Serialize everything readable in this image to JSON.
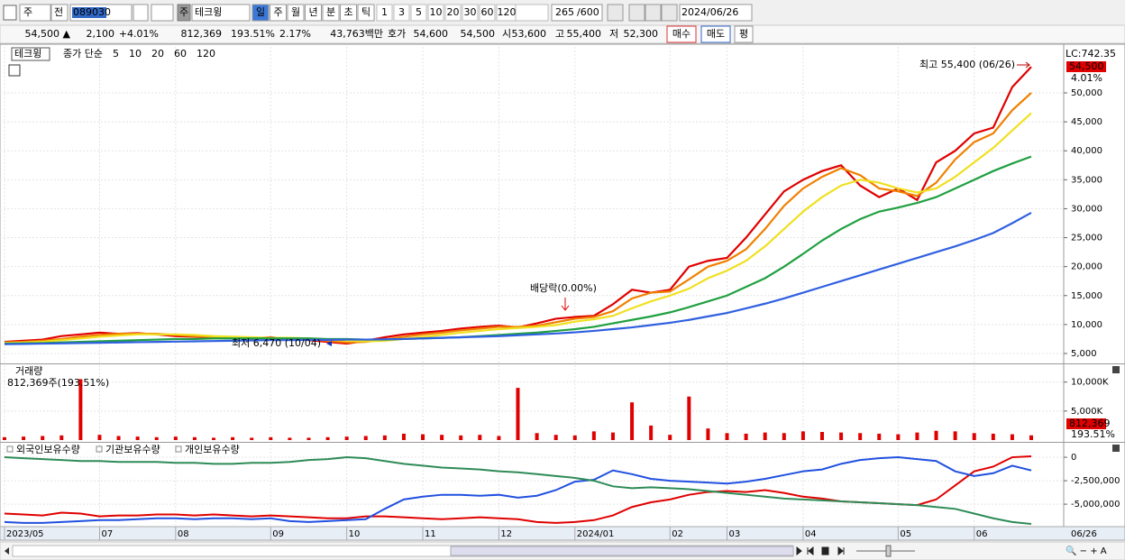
{
  "toolbar": {
    "market": "주",
    "prev": "전",
    "code": "089030",
    "name_tag": "주",
    "name": "테크윙",
    "periods": [
      "일",
      "주",
      "월",
      "년",
      "분",
      "초",
      "틱"
    ],
    "intervals": [
      "1",
      "3",
      "5",
      "10",
      "20",
      "30",
      "60",
      "120"
    ],
    "count": "265",
    "max": "/600",
    "date": "2024/06/26"
  },
  "quote": {
    "price": "54,500 ▲",
    "change": "2,100",
    "rate": "+4.01%",
    "volume": "812,369",
    "volume_ratio": "193.51%",
    "turnover": "2.17%",
    "amount": "43,763백만",
    "bid_label": "호가",
    "ask": "54,600",
    "bid": "54,500",
    "open_label": "시",
    "open": "53,600",
    "high_label": "고",
    "high": "55,400",
    "low_label": "저",
    "low": "52,300",
    "buy": "매수",
    "sell": "매도",
    "avg": "평"
  },
  "chart_data": [
    {
      "type": "line",
      "title": "테크윙",
      "legend_prefix": "종가 단순",
      "grid": true,
      "ylim": [
        3440,
        57940
      ],
      "yticks": [
        {
          "value": 5000,
          "label": "5,000"
        },
        {
          "value": 10000,
          "label": "10,000"
        },
        {
          "value": 15000,
          "label": "15,000"
        },
        {
          "value": 20000,
          "label": "20,000"
        },
        {
          "value": 25000,
          "label": "25,000"
        },
        {
          "value": 30000,
          "label": "30,000"
        },
        {
          "value": 35000,
          "label": "35,000"
        },
        {
          "value": 40000,
          "label": "40,000"
        },
        {
          "value": 45000,
          "label": "45,000"
        },
        {
          "value": 50000,
          "label": "50,000"
        }
      ],
      "annotations": {
        "high": "최고 55,400 (06/26)",
        "low": "최저 6,470 (10/04)",
        "dividend": "배당락(0.00%)"
      },
      "right_labels": {
        "lc": "LC:742.35",
        "price": "54,500",
        "rate": "4.01%"
      },
      "series": [
        {
          "name": "5",
          "color": "#e00000",
          "values": [
            7000,
            7200,
            7400,
            8000,
            8300,
            8600,
            8400,
            8500,
            8300,
            8000,
            7900,
            7800,
            7700,
            7600,
            7800,
            7500,
            7300,
            7000,
            6700,
            7200,
            7800,
            8300,
            8600,
            8900,
            9300,
            9600,
            9800,
            9500,
            10200,
            11000,
            11300,
            11500,
            13500,
            16000,
            15500,
            16000,
            20000,
            21000,
            21500,
            25000,
            29000,
            33000,
            35000,
            36500,
            37500,
            34000,
            32000,
            33500,
            31500,
            38000,
            40000,
            43000,
            44000,
            51000,
            54500
          ]
        },
        {
          "name": "10",
          "color": "#f08000",
          "values": [
            6900,
            7000,
            7200,
            7500,
            7900,
            8200,
            8400,
            8400,
            8400,
            8200,
            8000,
            7900,
            7800,
            7700,
            7700,
            7600,
            7500,
            7200,
            6900,
            7000,
            7400,
            7900,
            8300,
            8600,
            9000,
            9300,
            9600,
            9600,
            9800,
            10400,
            11000,
            11300,
            12300,
            14500,
            15500,
            15700,
            17800,
            20000,
            21000,
            23000,
            26500,
            30500,
            33500,
            35500,
            37000,
            35800,
            33500,
            33000,
            32200,
            34500,
            38500,
            41500,
            43000,
            47000,
            50000
          ]
        },
        {
          "name": "20",
          "color": "#f0e020",
          "values": [
            6800,
            6900,
            7000,
            7300,
            7600,
            7900,
            8100,
            8300,
            8300,
            8300,
            8200,
            8000,
            7900,
            7800,
            7700,
            7700,
            7600,
            7400,
            7200,
            7100,
            7200,
            7500,
            7900,
            8200,
            8600,
            8900,
            9200,
            9400,
            9600,
            9900,
            10500,
            10900,
            11500,
            12800,
            14000,
            15000,
            16200,
            18000,
            19300,
            21000,
            23500,
            26500,
            29500,
            32000,
            34000,
            35000,
            34500,
            33500,
            32800,
            33500,
            35500,
            38000,
            40500,
            43500,
            46500
          ]
        },
        {
          "name": "60",
          "color": "#20a040",
          "values": [
            6700,
            6750,
            6800,
            6900,
            7000,
            7100,
            7200,
            7300,
            7400,
            7500,
            7500,
            7600,
            7600,
            7600,
            7600,
            7600,
            7600,
            7500,
            7500,
            7400,
            7400,
            7500,
            7600,
            7700,
            7800,
            8000,
            8200,
            8400,
            8600,
            8900,
            9200,
            9600,
            10200,
            10800,
            11400,
            12100,
            13000,
            14000,
            15000,
            16500,
            18000,
            20000,
            22200,
            24500,
            26500,
            28200,
            29500,
            30200,
            31000,
            32000,
            33500,
            35000,
            36500,
            37800,
            39000
          ]
        },
        {
          "name": "120",
          "color": "#3060e0",
          "values": [
            6600,
            6650,
            6700,
            6750,
            6800,
            6850,
            6900,
            6950,
            7000,
            7050,
            7100,
            7150,
            7200,
            7250,
            7300,
            7300,
            7350,
            7350,
            7400,
            7400,
            7450,
            7500,
            7600,
            7700,
            7800,
            7900,
            8000,
            8150,
            8300,
            8450,
            8650,
            8900,
            9200,
            9500,
            9900,
            10300,
            10800,
            11400,
            12000,
            12800,
            13600,
            14500,
            15500,
            16500,
            17500,
            18500,
            19500,
            20500,
            21500,
            22500,
            23500,
            24600,
            25800,
            27500,
            29300
          ]
        }
      ]
    },
    {
      "type": "bar",
      "title": "거래량",
      "subtitle": "812,369주(193.51%)",
      "color": "#e00000",
      "ylim": [
        0,
        12900
      ],
      "yticks": [
        {
          "value": 5000,
          "label": "5,000K"
        },
        {
          "value": 10000,
          "label": "10,000K"
        }
      ],
      "right_labels": {
        "volume": "812,369",
        "ratio": "193.51%"
      },
      "values": [
        500,
        600,
        700,
        800,
        10500,
        900,
        700,
        600,
        500,
        600,
        500,
        400,
        500,
        400,
        500,
        400,
        400,
        500,
        600,
        700,
        800,
        1100,
        1000,
        900,
        800,
        900,
        700,
        9000,
        1200,
        900,
        800,
        1500,
        1300,
        6500,
        2500,
        900,
        7500,
        2000,
        1200,
        1100,
        1300,
        1200,
        1500,
        1400,
        1300,
        1200,
        1100,
        1000,
        1300,
        1600,
        1500,
        1200,
        1100,
        1000,
        812
      ]
    },
    {
      "type": "line",
      "ylim": [
        -7200000,
        1350000
      ],
      "yticks": [
        0,
        {
          "value": -2500000,
          "label": "-2,500,000"
        },
        {
          "value": -5000000,
          "label": "-5,000,000"
        }
      ],
      "categories": [
        "2023/05",
        null,
        null,
        null,
        null,
        "07",
        null,
        null,
        null,
        "08",
        null,
        null,
        null,
        null,
        "09",
        null,
        null,
        null,
        "10",
        null,
        null,
        null,
        "11",
        null,
        null,
        null,
        "12",
        null,
        null,
        null,
        "2024/01",
        null,
        null,
        null,
        null,
        "02",
        null,
        null,
        "03",
        null,
        null,
        null,
        "04",
        null,
        null,
        null,
        null,
        "05",
        null,
        null,
        null,
        "06",
        null,
        null,
        null
      ],
      "end_label": "06/26",
      "series": [
        {
          "name": "외국인보유수량",
          "color": "#e00000",
          "values": [
            -6000000,
            -6100000,
            -6200000,
            -5900000,
            -6000000,
            -6300000,
            -6200000,
            -6200000,
            -6100000,
            -6100000,
            -6200000,
            -6100000,
            -6200000,
            -6300000,
            -6200000,
            -6300000,
            -6400000,
            -6500000,
            -6500000,
            -6300000,
            -6300000,
            -6400000,
            -6500000,
            -6600000,
            -6500000,
            -6400000,
            -6500000,
            -6600000,
            -6900000,
            -7000000,
            -6900000,
            -6700000,
            -6200000,
            -5300000,
            -4800000,
            -4500000,
            -4000000,
            -3700000,
            -3600000,
            -3700000,
            -3500000,
            -3800000,
            -4200000,
            -4400000,
            -4700000,
            -4800000,
            -4900000,
            -5000000,
            -5100000,
            -4500000,
            -3000000,
            -1500000,
            -1000000,
            0,
            100000
          ]
        },
        {
          "name": "기관보유수량",
          "color": "#2050e0",
          "values": [
            -6900000,
            -7000000,
            -7000000,
            -6900000,
            -6800000,
            -6700000,
            -6700000,
            -6600000,
            -6500000,
            -6500000,
            -6600000,
            -6500000,
            -6500000,
            -6600000,
            -6500000,
            -6800000,
            -6900000,
            -6800000,
            -6700000,
            -6600000,
            -5500000,
            -4500000,
            -4200000,
            -4000000,
            -4000000,
            -4100000,
            -4000000,
            -4300000,
            -4100000,
            -3500000,
            -2600000,
            -2400000,
            -1400000,
            -1800000,
            -2300000,
            -2500000,
            -2600000,
            -2700000,
            -2800000,
            -2600000,
            -2300000,
            -1900000,
            -1500000,
            -1300000,
            -700000,
            -300000,
            -100000,
            0,
            -200000,
            -400000,
            -1500000,
            -2000000,
            -1700000,
            -900000,
            -1400000
          ]
        },
        {
          "name": "개인보유수량",
          "color": "#2e8b57",
          "values": [
            0,
            -100000,
            -200000,
            -300000,
            -400000,
            -400000,
            -500000,
            -500000,
            -500000,
            -600000,
            -600000,
            -700000,
            -700000,
            -600000,
            -600000,
            -500000,
            -300000,
            -200000,
            0,
            -100000,
            -400000,
            -700000,
            -900000,
            -1100000,
            -1200000,
            -1300000,
            -1500000,
            -1600000,
            -1800000,
            -2000000,
            -2200000,
            -2500000,
            -3100000,
            -3300000,
            -3200000,
            -3300000,
            -3400000,
            -3600000,
            -3800000,
            -4000000,
            -4200000,
            -4400000,
            -4500000,
            -4600000,
            -4700000,
            -4800000,
            -4900000,
            -5000000,
            -5100000,
            -5300000,
            -5500000,
            -6000000,
            -6500000,
            -6900000,
            -7100000
          ]
        }
      ]
    }
  ]
}
